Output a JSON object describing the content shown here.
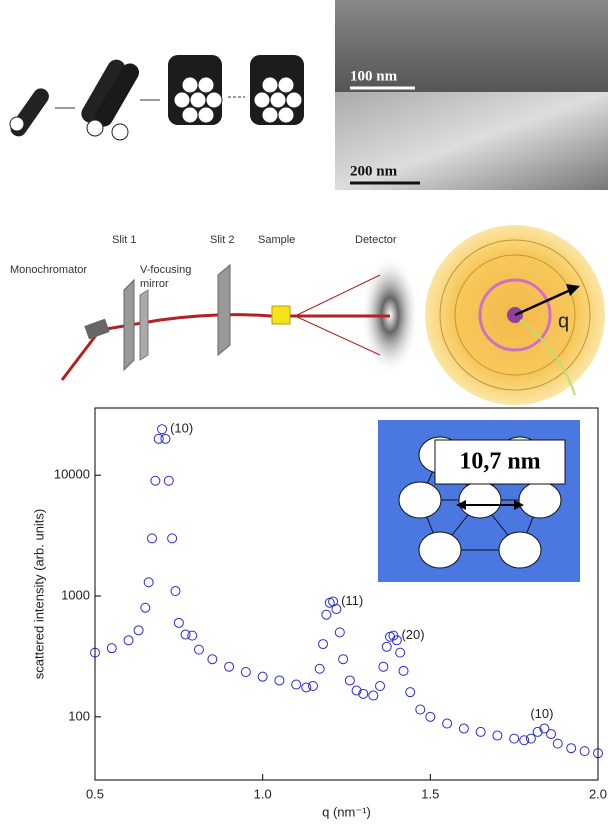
{
  "figure": {
    "scale_top": "100 nm",
    "scale_bottom": "200 nm",
    "slit1": "Slit 1",
    "slit2": "Slit 2",
    "sample": "Sample",
    "detector": "Detector",
    "monochromator": "Monochromator",
    "mirror_line1": "V-focusing",
    "mirror_line2": "mirror",
    "q_label": "q",
    "inset_label": "10,7 nm"
  },
  "chart_data": {
    "type": "scatter",
    "x_label": "q (nm⁻¹)",
    "y_label": "scattered intensity (arb. units)",
    "log_y": true,
    "color": "#2b2bd0",
    "x": [
      0.5,
      0.55,
      0.6,
      0.63,
      0.65,
      0.66,
      0.67,
      0.68,
      0.69,
      0.7,
      0.71,
      0.72,
      0.73,
      0.74,
      0.75,
      0.77,
      0.79,
      0.81,
      0.85,
      0.9,
      0.95,
      1.0,
      1.05,
      1.1,
      1.13,
      1.15,
      1.17,
      1.18,
      1.19,
      1.2,
      1.21,
      1.22,
      1.23,
      1.24,
      1.26,
      1.28,
      1.3,
      1.33,
      1.35,
      1.36,
      1.37,
      1.38,
      1.39,
      1.4,
      1.41,
      1.42,
      1.44,
      1.47,
      1.5,
      1.55,
      1.6,
      1.65,
      1.7,
      1.75,
      1.78,
      1.8,
      1.82,
      1.84,
      1.86,
      1.88,
      1.92,
      1.96,
      2.0
    ],
    "values": [
      340,
      370,
      430,
      520,
      800,
      1300,
      3000,
      9000,
      20000,
      24000,
      20000,
      9000,
      3000,
      1100,
      600,
      480,
      470,
      360,
      300,
      260,
      235,
      215,
      200,
      185,
      175,
      180,
      250,
      400,
      700,
      880,
      900,
      780,
      500,
      300,
      200,
      165,
      155,
      150,
      180,
      260,
      380,
      460,
      470,
      430,
      340,
      240,
      160,
      115,
      100,
      88,
      80,
      75,
      70,
      66,
      64,
      66,
      75,
      80,
      72,
      60,
      55,
      52,
      50
    ],
    "xlim": [
      0.5,
      2.0
    ],
    "ylim": [
      30,
      36000
    ],
    "xticks": [
      0.5,
      {
        "value": 1,
        "label": "1.0"
      },
      1.5,
      {
        "value": 2,
        "label": "2.0"
      }
    ],
    "yticks": [
      100,
      1000,
      10000
    ],
    "annotations": [
      {
        "text": "(10)",
        "x": 0.7,
        "y": 24000
      },
      {
        "text": "(11)",
        "x": 1.21,
        "y": 900
      },
      {
        "text": "(20)",
        "x": 1.39,
        "y": 470
      },
      {
        "text": "(10)",
        "x": 1.84,
        "y": 80
      }
    ]
  }
}
